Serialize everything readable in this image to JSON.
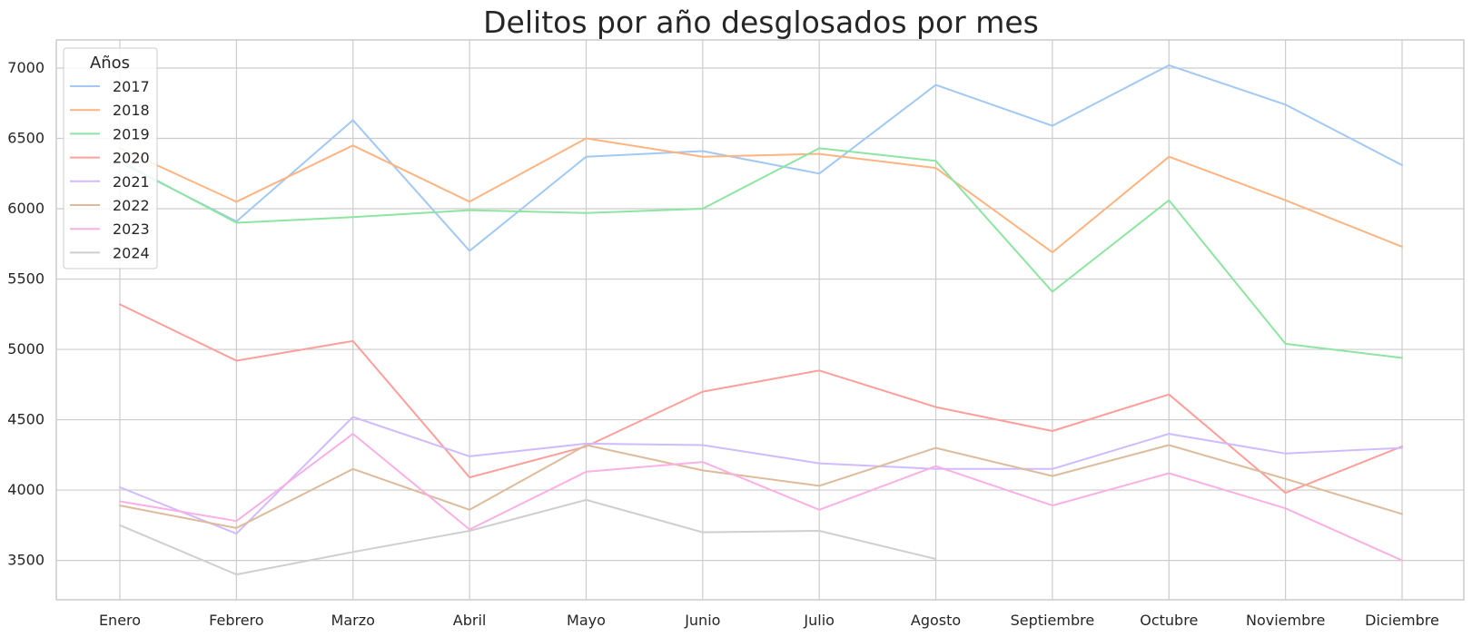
{
  "chart_data": {
    "type": "line",
    "title": "Delitos por año desglosados por mes",
    "xlabel": "",
    "ylabel": "",
    "categories": [
      "Enero",
      "Febrero",
      "Marzo",
      "Abril",
      "Mayo",
      "Junio",
      "Julio",
      "Agosto",
      "Septiembre",
      "Octubre",
      "Noviembre",
      "Diciembre"
    ],
    "ylim": [
      3220,
      7200
    ],
    "yticks": [
      3500,
      4000,
      4500,
      5000,
      5500,
      6000,
      6500,
      7000
    ],
    "grid": true,
    "legend_title": "Años",
    "legend_position": "top-left",
    "series": [
      {
        "name": "2017",
        "color": "#a1c9f4",
        "values": [
          6330,
          5910,
          6630,
          5700,
          6370,
          6410,
          6250,
          6880,
          6590,
          7020,
          6740,
          6310
        ]
      },
      {
        "name": "2018",
        "color": "#ffb482",
        "values": [
          6430,
          6050,
          6450,
          6050,
          6500,
          6370,
          6390,
          6290,
          5690,
          6370,
          6060,
          5730
        ]
      },
      {
        "name": "2019",
        "color": "#8de5a1",
        "values": [
          6340,
          5900,
          5940,
          5990,
          5970,
          6000,
          6430,
          6340,
          5410,
          6060,
          5040,
          4940
        ]
      },
      {
        "name": "2020",
        "color": "#ff9f9b",
        "values": [
          5320,
          4920,
          5060,
          4090,
          4310,
          4700,
          4850,
          4590,
          4420,
          4680,
          3980,
          4310
        ]
      },
      {
        "name": "2021",
        "color": "#d0bbff",
        "values": [
          4020,
          3690,
          4520,
          4240,
          4330,
          4320,
          4190,
          4150,
          4150,
          4400,
          4260,
          4300
        ]
      },
      {
        "name": "2022",
        "color": "#debb9b",
        "values": [
          3890,
          3730,
          4150,
          3860,
          4320,
          4140,
          4030,
          4300,
          4100,
          4320,
          4080,
          3830
        ]
      },
      {
        "name": "2023",
        "color": "#fab0e4",
        "values": [
          3920,
          3780,
          4400,
          3720,
          4130,
          4200,
          3860,
          4170,
          3890,
          4120,
          3870,
          3500
        ]
      },
      {
        "name": "2024",
        "color": "#cfcfcf",
        "values": [
          3750,
          3400,
          3560,
          3710,
          3930,
          3700,
          3710,
          3510,
          null,
          null,
          null,
          null
        ]
      }
    ]
  }
}
